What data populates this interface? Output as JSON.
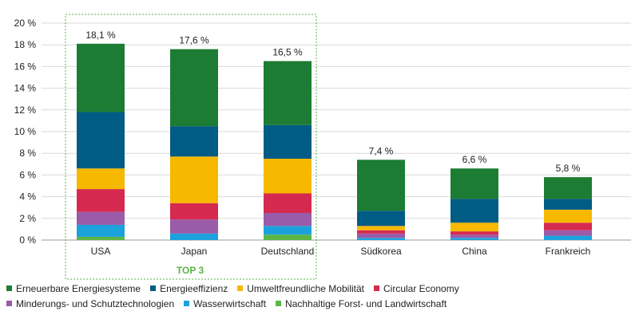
{
  "chart_data": {
    "type": "bar",
    "stacked": true,
    "categories": [
      "USA",
      "Japan",
      "Deutschland",
      "Südkorea",
      "China",
      "Frankreich"
    ],
    "totals_labels": [
      "18,1 %",
      "17,6 %",
      "16,5 %",
      "7,4 %",
      "6,6 %",
      "5,8 %"
    ],
    "series": [
      {
        "name": "Nachhaltige Forst- und Landwirtschaft",
        "color": "#5cb646",
        "values": [
          0.3,
          0.0,
          0.5,
          0.0,
          0.0,
          0.0
        ]
      },
      {
        "name": "Wasserwirtschaft",
        "color": "#1ba2dc",
        "values": [
          1.1,
          0.6,
          0.8,
          0.2,
          0.2,
          0.4
        ]
      },
      {
        "name": "Minderungs- und Schutztechnologien",
        "color": "#9a5ba8",
        "values": [
          1.2,
          1.3,
          1.2,
          0.4,
          0.3,
          0.5
        ]
      },
      {
        "name": "Circular Economy",
        "color": "#d6294f",
        "values": [
          2.1,
          1.5,
          1.8,
          0.3,
          0.3,
          0.7
        ]
      },
      {
        "name": "Umweltfreundliche Mobilität",
        "color": "#f7b800",
        "values": [
          1.9,
          4.3,
          3.2,
          0.4,
          0.8,
          1.2
        ]
      },
      {
        "name": "Energieeffizienz",
        "color": "#005b85",
        "values": [
          5.2,
          2.8,
          3.1,
          1.4,
          2.2,
          1.0
        ]
      },
      {
        "name": "Erneuerbare Energiesysteme",
        "color": "#1c7c33",
        "values": [
          6.3,
          7.1,
          5.9,
          4.7,
          2.8,
          2.0
        ]
      }
    ],
    "yticks": [
      "0 %",
      "2 %",
      "4 %",
      "6 %",
      "8 %",
      "10 %",
      "12 %",
      "14 %",
      "16 %",
      "18 %",
      "20 %"
    ],
    "ylim": [
      0,
      20
    ],
    "grid": true,
    "highlight_label": "TOP 3",
    "highlight_color": "#5ab443",
    "legend_placement": "bottom"
  },
  "legend": {
    "rows": [
      [
        {
          "label": "Erneuerbare Energiesysteme",
          "color": "#1c7c33"
        },
        {
          "label": "Energieeffizienz",
          "color": "#005b85"
        },
        {
          "label": "Umweltfreundliche Mobilität",
          "color": "#f7b800"
        },
        {
          "label": "Circular Economy",
          "color": "#d6294f"
        }
      ],
      [
        {
          "label": "Minderungs- und Schutztechnologien",
          "color": "#9a5ba8"
        },
        {
          "label": "Wasserwirtschaft",
          "color": "#1ba2dc"
        },
        {
          "label": "Nachhaltige Forst- und Landwirtschaft",
          "color": "#5cb646"
        }
      ]
    ]
  }
}
